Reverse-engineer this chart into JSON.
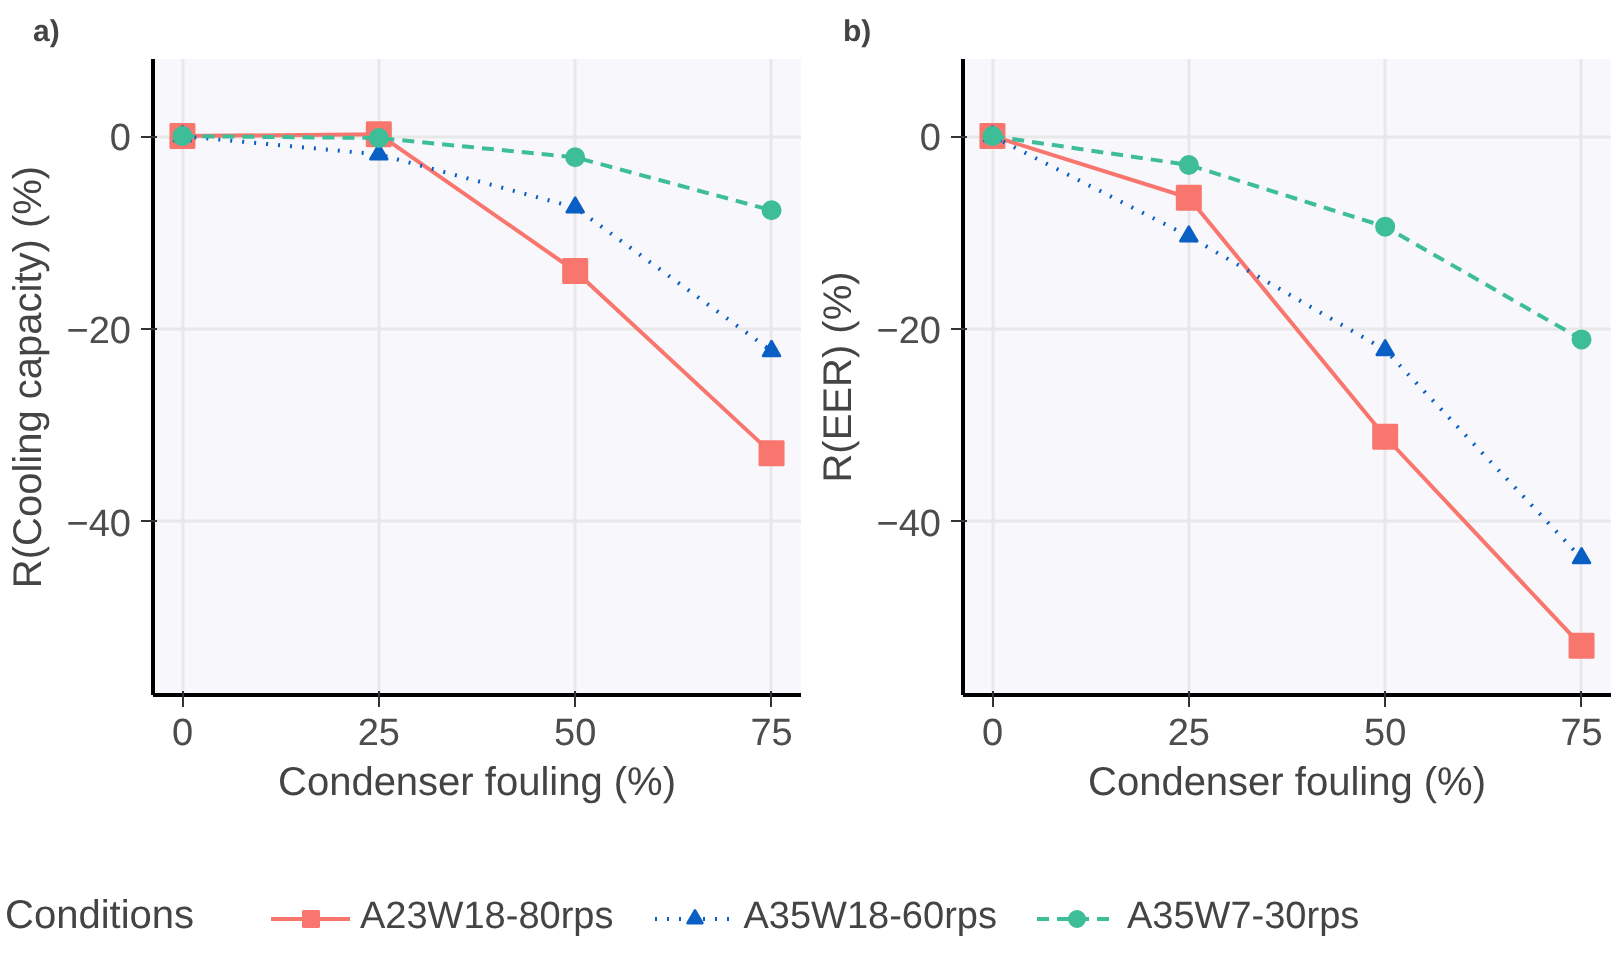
{
  "chart_data": [
    {
      "type": "line",
      "title": "a)",
      "xlabel": "Condenser fouling (%)",
      "ylabel": "R(Cooling capacity) (%)",
      "legend_title": "Conditions",
      "x": [
        0,
        25,
        50,
        75
      ],
      "xlim": [
        -3.75,
        78.75
      ],
      "xticks": [
        0,
        25,
        50,
        75
      ],
      "ylim": [
        -58,
        8
      ],
      "yticks": [
        -40,
        -20,
        0
      ],
      "grid": true,
      "legend": "bottom",
      "series": [
        {
          "name": "A23W18-80rps",
          "color": "#f8766d",
          "marker": "square",
          "line_style": "solid",
          "values": [
            0,
            0.2,
            -14.0,
            -32.9
          ]
        },
        {
          "name": "A35W18-60rps",
          "color": "#0a5fc4",
          "marker": "triangle",
          "line_style": "dotted",
          "values": [
            0,
            -1.9,
            -7.4,
            -22.3
          ]
        },
        {
          "name": "A35W7-30rps",
          "color": "#3dbd98",
          "marker": "circle",
          "line_style": "dashed",
          "values": [
            0,
            -0.2,
            -2.2,
            -7.7
          ]
        }
      ]
    },
    {
      "type": "line",
      "title": "b)",
      "xlabel": "Condenser fouling (%)",
      "ylabel": "R(EER) (%)",
      "x": [
        0,
        25,
        50,
        75
      ],
      "xlim": [
        -3.75,
        78.75
      ],
      "xticks": [
        0,
        25,
        50,
        75
      ],
      "ylim": [
        -58,
        8
      ],
      "yticks": [
        -40,
        -20,
        0
      ],
      "grid": true,
      "series": [
        {
          "color": "#f8766d",
          "marker": "square",
          "line_style": "solid",
          "values": [
            0,
            -6.4,
            -31.2,
            -52.9
          ]
        },
        {
          "color": "#0a5fc4",
          "marker": "triangle",
          "line_style": "dotted",
          "values": [
            0,
            -10.4,
            -22.2,
            -43.8
          ]
        },
        {
          "color": "#3dbd98",
          "marker": "circle",
          "line_style": "dashed",
          "values": [
            0,
            -3.0,
            -9.4,
            -21.1
          ]
        }
      ]
    }
  ]
}
